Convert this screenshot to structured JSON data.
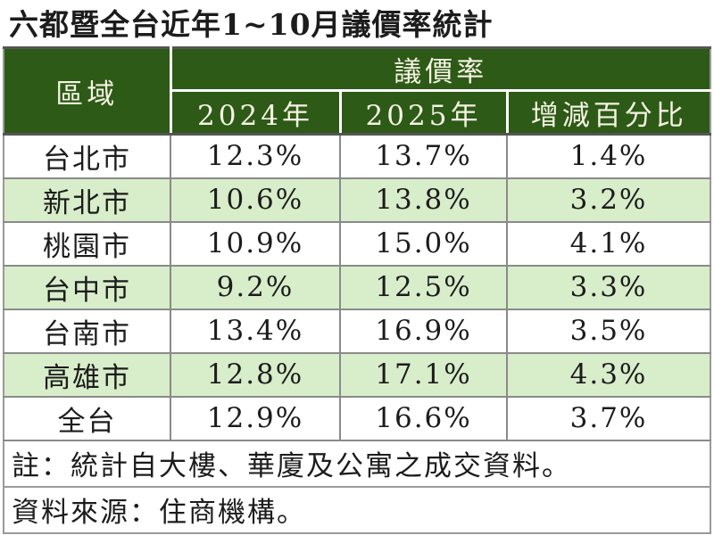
{
  "chart_data": {
    "type": "table",
    "title": "六都暨全台近年1~10月議價率統計",
    "row_header_label": "區域",
    "column_group_label": "議價率",
    "columns": [
      "2024年",
      "2025年",
      "增減百分比"
    ],
    "rows": [
      {
        "region": "台北市",
        "y2024": "12.3%",
        "y2025": "13.7%",
        "change": "1.4%"
      },
      {
        "region": "新北市",
        "y2024": "10.6%",
        "y2025": "13.8%",
        "change": "3.2%"
      },
      {
        "region": "桃園市",
        "y2024": "10.9%",
        "y2025": "15.0%",
        "change": "4.1%"
      },
      {
        "region": "台中市",
        "y2024": "9.2%",
        "y2025": "12.5%",
        "change": "3.3%"
      },
      {
        "region": "台南市",
        "y2024": "13.4%",
        "y2025": "16.9%",
        "change": "3.5%"
      },
      {
        "region": "高雄市",
        "y2024": "12.8%",
        "y2025": "17.1%",
        "change": "4.3%"
      },
      {
        "region": "全台",
        "y2024": "12.9%",
        "y2025": "16.6%",
        "change": "3.7%"
      }
    ],
    "notes": [
      "註：統計自大樓、華廈及公寓之成交資料。",
      "資料來源：住商機構。"
    ]
  },
  "colors": {
    "header_bg": "#2d5a16",
    "header_text": "#f5f3e4",
    "row_alt_bg": "#d8edca",
    "row_bg": "#ffffff",
    "text": "#1c1c1c",
    "border_gray": "#8a8a8a"
  }
}
